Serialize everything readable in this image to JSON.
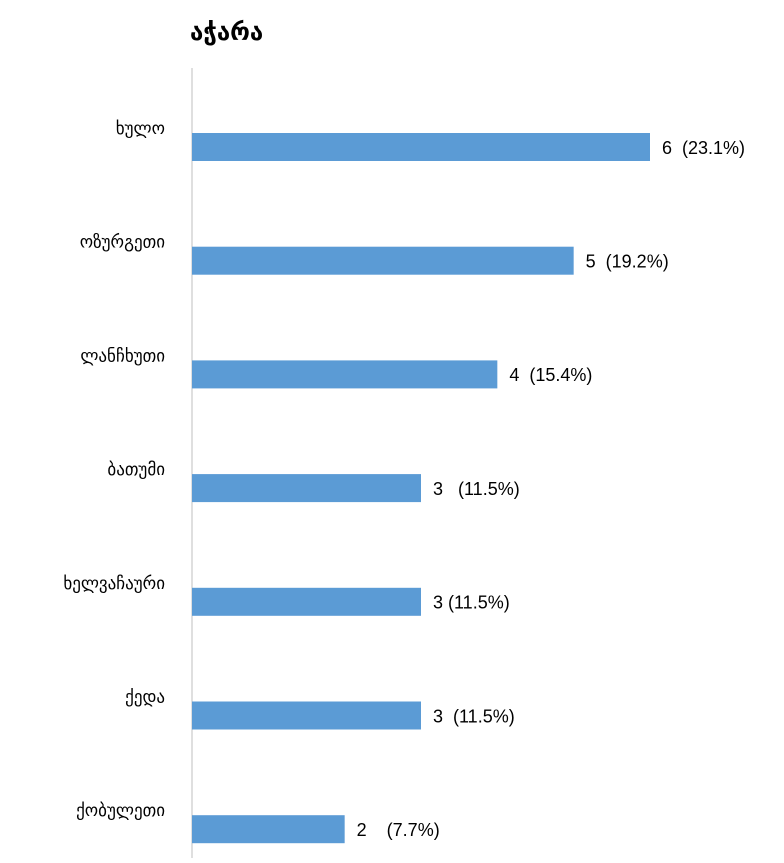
{
  "chart_data": {
    "type": "bar",
    "orientation": "horizontal",
    "title": "აჭარა",
    "categories": [
      "ხულო",
      "ოზურგეთი",
      "ლანჩხუთი",
      "ბათუმი",
      "ხელვაჩაური",
      "ქედა",
      "ქობულეთი"
    ],
    "values": [
      6,
      5,
      4,
      3,
      3,
      3,
      2
    ],
    "value_labels": [
      "6  (23.1%)",
      "5  (19.2%)",
      "4  (15.4%)",
      "3   (11.5%)",
      "3 (11.5%)",
      "3  (11.5%)",
      "2    (7.7%)"
    ],
    "color": "#5b9bd5"
  }
}
